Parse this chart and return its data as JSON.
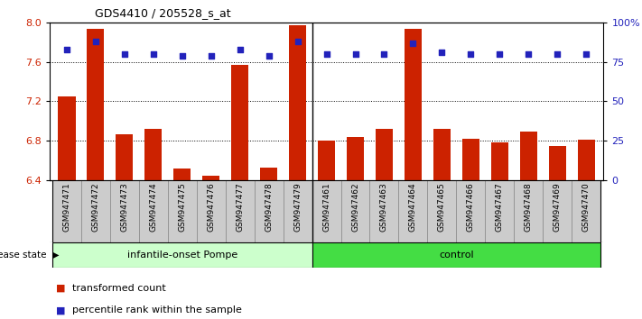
{
  "title": "GDS4410 / 205528_s_at",
  "samples": [
    "GSM947471",
    "GSM947472",
    "GSM947473",
    "GSM947474",
    "GSM947475",
    "GSM947476",
    "GSM947477",
    "GSM947478",
    "GSM947479",
    "GSM947461",
    "GSM947462",
    "GSM947463",
    "GSM947464",
    "GSM947465",
    "GSM947466",
    "GSM947467",
    "GSM947468",
    "GSM947469",
    "GSM947470"
  ],
  "red_values": [
    7.25,
    7.93,
    6.87,
    6.92,
    6.52,
    6.45,
    7.57,
    6.53,
    7.97,
    6.8,
    6.84,
    6.92,
    7.93,
    6.92,
    6.82,
    6.78,
    6.89,
    6.75,
    6.81
  ],
  "blue_values": [
    83,
    88,
    80,
    80,
    79,
    79,
    83,
    79,
    88,
    80,
    80,
    80,
    87,
    81,
    80,
    80,
    80,
    80,
    80
  ],
  "ylim_left": [
    6.4,
    8.0
  ],
  "ylim_right": [
    0,
    100
  ],
  "yticks_left": [
    6.4,
    6.8,
    7.2,
    7.6,
    8.0
  ],
  "yticks_right": [
    0,
    25,
    50,
    75,
    100
  ],
  "group1_label": "infantile-onset Pompe",
  "group2_label": "control",
  "group1_count": 9,
  "disease_state_label": "disease state",
  "legend_red": "transformed count",
  "legend_blue": "percentile rank within the sample",
  "bar_color": "#cc2200",
  "dot_color": "#2222bb",
  "group1_bg": "#ccffcc",
  "group2_bg": "#44dd44",
  "tick_bg": "#cccccc"
}
